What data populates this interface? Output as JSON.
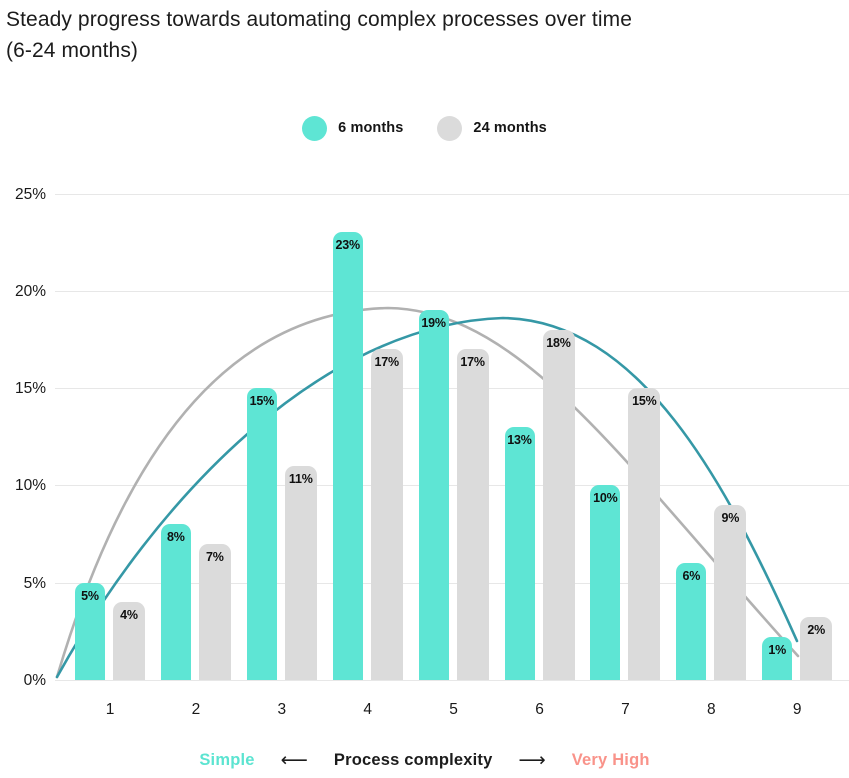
{
  "title": {
    "line1": "Steady progress towards automating complex processes over time",
    "line2": "(6-24 months)"
  },
  "legend": {
    "items": [
      {
        "label": "6 months",
        "color": "#5EE5D4"
      },
      {
        "label": "24 months",
        "color": "#DBDBDB"
      }
    ]
  },
  "icons": {
    "arrow_left": "⟵",
    "arrow_right": "⟶"
  },
  "x_axis_legend": {
    "left_label": "Simple",
    "left_color": "#5CE4D1",
    "center_label": "Process complexity",
    "right_label": "Very High",
    "right_color": "#F9938A"
  },
  "chart_data": {
    "type": "bar",
    "title": "Steady progress towards automating complex processes over time (6-24 months)",
    "categories": [
      "1",
      "2",
      "3",
      "4",
      "5",
      "6",
      "7",
      "8",
      "9"
    ],
    "series": [
      {
        "name": "6 months",
        "color": "#5EE5D4",
        "values": [
          5,
          8,
          15,
          23,
          19,
          13,
          10,
          6,
          1
        ]
      },
      {
        "name": "24 months",
        "color": "#DBDBDB",
        "values": [
          4,
          7,
          11,
          17,
          17,
          18,
          15,
          9,
          2
        ]
      }
    ],
    "value_suffix": "%",
    "data_labels": true,
    "y_axis": {
      "ticks": [
        0,
        5,
        10,
        15,
        20,
        25
      ],
      "suffix": "%",
      "min": 0,
      "max": 25
    },
    "x_axis": {
      "label_left": "Simple",
      "label_center": "Process complexity",
      "label_right": "Very High"
    },
    "trend_curves": [
      {
        "series": "6 months",
        "color": "#B1B1B1",
        "peak_category": 4.2,
        "peak_value": 19.2,
        "start_value": 0,
        "end_value": 1.2
      },
      {
        "series": "24 months",
        "color": "#3598A6",
        "peak_category": 5.4,
        "peak_value": 18.6,
        "start_value": 0,
        "end_value": 2.0
      }
    ],
    "grid": "horizontal",
    "legend_position": "top-center"
  }
}
